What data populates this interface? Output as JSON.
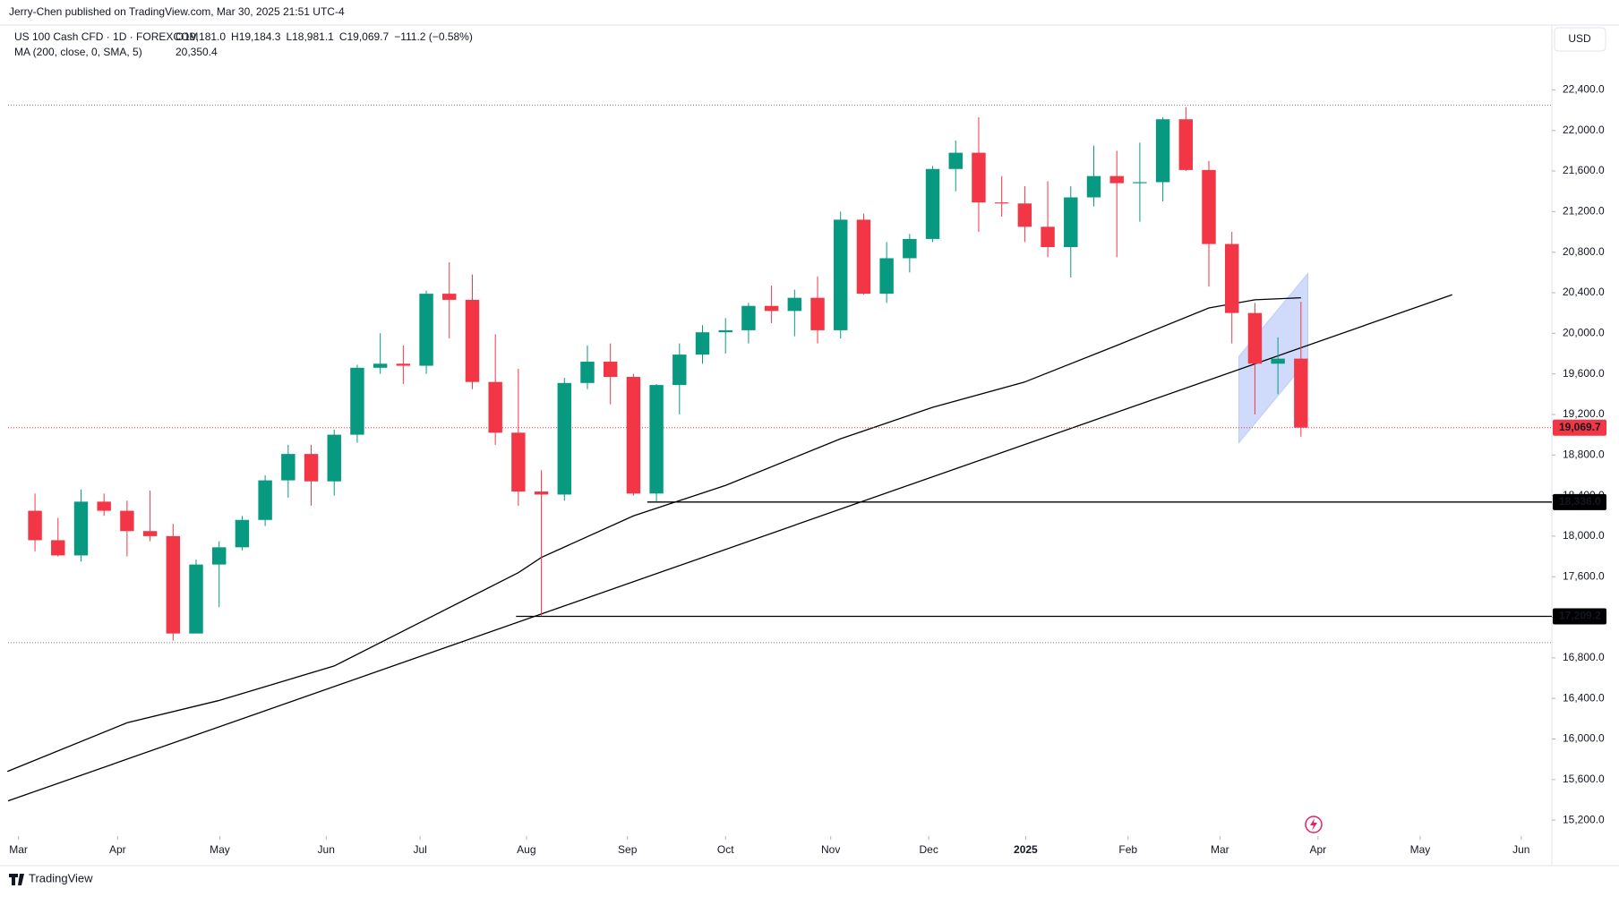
{
  "chart_data": {
    "type": "candlestick",
    "publisher": "Jerry-Chen published on TradingView.com, Mar 30, 2025 21:51 UTC-4",
    "symbol": "US 100 Cash CFD · 1D · FOREXCOM",
    "ohlc_labels": [
      "O19,181.0",
      "H19,184.3",
      "L18,981.1",
      "C19,069.7",
      "−111.2 (−0.58%)"
    ],
    "currency": "USD",
    "brand": "TradingView",
    "x": [
      0,
      1,
      2,
      3,
      4,
      5,
      6,
      7,
      8,
      9,
      10,
      11,
      12,
      13,
      14,
      15,
      16,
      17,
      18,
      19,
      20,
      21,
      22,
      23,
      24,
      25,
      26,
      27,
      28,
      29,
      30,
      31,
      32,
      33,
      34,
      35,
      36,
      37,
      38,
      39,
      40,
      41,
      42,
      43,
      44,
      45,
      46,
      47,
      48,
      49,
      50,
      51,
      52,
      53,
      54,
      55
    ],
    "open": [
      18250,
      17960,
      17810,
      18340,
      18250,
      18050,
      18000,
      17040,
      17720,
      17890,
      18160,
      18550,
      18810,
      18540,
      19000,
      19660,
      19700,
      19680,
      20390,
      20330,
      19520,
      19020,
      18440,
      18410,
      19510,
      19720,
      19570,
      18420,
      19490,
      19790,
      20010,
      20030,
      20270,
      20220,
      20350,
      20030,
      21120,
      20390,
      20740,
      20930,
      21620,
      21780,
      21290,
      21280,
      21050,
      20850,
      21340,
      21550,
      21480,
      21490,
      22110,
      21610,
      20880,
      20200,
      19700,
      19750
    ],
    "high": [
      18420,
      18180,
      18460,
      18420,
      18350,
      18450,
      18120,
      17770,
      17950,
      18200,
      18600,
      18900,
      18900,
      19050,
      19690,
      20000,
      19880,
      20420,
      20700,
      20580,
      19990,
      19650,
      18650,
      19560,
      19880,
      19900,
      19600,
      19500,
      19900,
      20080,
      20150,
      20300,
      20470,
      20430,
      20560,
      21200,
      21180,
      20900,
      20980,
      21650,
      21900,
      22130,
      21550,
      21450,
      21500,
      21450,
      21850,
      21800,
      21880,
      22130,
      22230,
      21700,
      21000,
      20300,
      19960,
      20310
    ],
    "low": [
      17850,
      17800,
      17750,
      18200,
      17800,
      17950,
      16970,
      17100,
      17300,
      17860,
      18100,
      18380,
      18300,
      18400,
      18920,
      19600,
      19500,
      19600,
      19950,
      19450,
      18900,
      18300,
      17210,
      18350,
      19450,
      19300,
      18400,
      18340,
      19200,
      19700,
      19800,
      19900,
      20100,
      19970,
      19900,
      19950,
      20380,
      20300,
      20600,
      20900,
      21400,
      21000,
      21150,
      20900,
      20750,
      20550,
      21250,
      20750,
      21100,
      21300,
      21600,
      20460,
      19900,
      19200,
      19400,
      18980
    ],
    "close": [
      17960,
      17810,
      18340,
      18250,
      18050,
      18000,
      17040,
      17720,
      17890,
      18160,
      18550,
      18810,
      18540,
      19000,
      19660,
      19700,
      19680,
      20390,
      20330,
      19520,
      19020,
      18440,
      18410,
      19510,
      19720,
      19570,
      18420,
      19490,
      19790,
      20010,
      20030,
      20270,
      20220,
      20350,
      20030,
      21120,
      20390,
      20740,
      20930,
      21620,
      21780,
      21290,
      21280,
      21050,
      20850,
      21340,
      21550,
      21480,
      21490,
      22110,
      21610,
      20880,
      20200,
      19700,
      19750,
      19069.7
    ],
    "up_color": "#089981",
    "down_color": "#f23645",
    "ma": {
      "name": "MA (200, close, 0, SMA, 5)",
      "value_label": "20,350.4",
      "color": "#000000",
      "x": [
        -1.2,
        4,
        8,
        13,
        17,
        21,
        22,
        26,
        30,
        35,
        39,
        43,
        47,
        51,
        53,
        55
      ],
      "values": [
        15680,
        16160,
        16380,
        16720,
        17180,
        17640,
        17790,
        18200,
        18500,
        18960,
        19270,
        19520,
        19880,
        20250,
        20330,
        20350.4
      ]
    },
    "trendline": {
      "x": [
        -1.17,
        61.57
      ],
      "values": [
        15390,
        20380
      ]
    },
    "channel": {
      "x": [
        52.3,
        52.3,
        55.3,
        55.3
      ],
      "values": [
        18920,
        19770,
        20590,
        19740
      ],
      "color": "#bcccfa"
    },
    "levels": [
      {
        "value": 18336.0,
        "label": "18,336.0",
        "x_start": 26.6
      },
      {
        "value": 17209.2,
        "label": "17,209.2",
        "x_start": 20.9
      }
    ],
    "range_lines": [
      22250,
      16950
    ],
    "last_price": {
      "value": 19069.7,
      "label": "19,069.7"
    },
    "xlim": [
      -1.17,
      65.9
    ],
    "ylim": [
      15060,
      23030
    ],
    "xticks": [
      {
        "value": -0.72,
        "label": "Mar"
      },
      {
        "value": 3.59,
        "label": "Apr"
      },
      {
        "value": 8.03,
        "label": "May"
      },
      {
        "value": 12.65,
        "label": "Jun"
      },
      {
        "value": 16.73,
        "label": "Jul"
      },
      {
        "value": 21.35,
        "label": "Aug"
      },
      {
        "value": 25.74,
        "label": "Sep"
      },
      {
        "value": 30.0,
        "label": "Oct"
      },
      {
        "value": 34.57,
        "label": "Nov"
      },
      {
        "value": 38.83,
        "label": "Dec"
      },
      {
        "value": 43.04,
        "label": "2025"
      },
      {
        "value": 47.49,
        "label": "Feb"
      },
      {
        "value": 51.48,
        "label": "Mar"
      },
      {
        "value": 55.74,
        "label": "Apr"
      },
      {
        "value": 60.18,
        "label": "May"
      },
      {
        "value": 64.57,
        "label": "Jun"
      }
    ],
    "yticks": [
      {
        "value": 15200,
        "label": "15,200.0"
      },
      {
        "value": 15600,
        "label": "15,600.0"
      },
      {
        "value": 16000,
        "label": "16,000.0"
      },
      {
        "value": 16400,
        "label": "16,400.0"
      },
      {
        "value": 16800,
        "label": "16,800.0"
      },
      {
        "value": 17200,
        "label": "17,200.0"
      },
      {
        "value": 17600,
        "label": "17,600.0"
      },
      {
        "value": 18000,
        "label": "18,000.0"
      },
      {
        "value": 18400,
        "label": "18,400.0"
      },
      {
        "value": 18800,
        "label": "18,800.0"
      },
      {
        "value": 19200,
        "label": "19,200.0"
      },
      {
        "value": 19600,
        "label": "19,600.0"
      },
      {
        "value": 20000,
        "label": "20,000.0"
      },
      {
        "value": 20400,
        "label": "20,400.0"
      },
      {
        "value": 20800,
        "label": "20,800.0"
      },
      {
        "value": 21200,
        "label": "21,200.0"
      },
      {
        "value": 21600,
        "label": "21,600.0"
      },
      {
        "value": 22000,
        "label": "22,000.0"
      },
      {
        "value": 22400,
        "label": "22,400.0"
      }
    ]
  }
}
